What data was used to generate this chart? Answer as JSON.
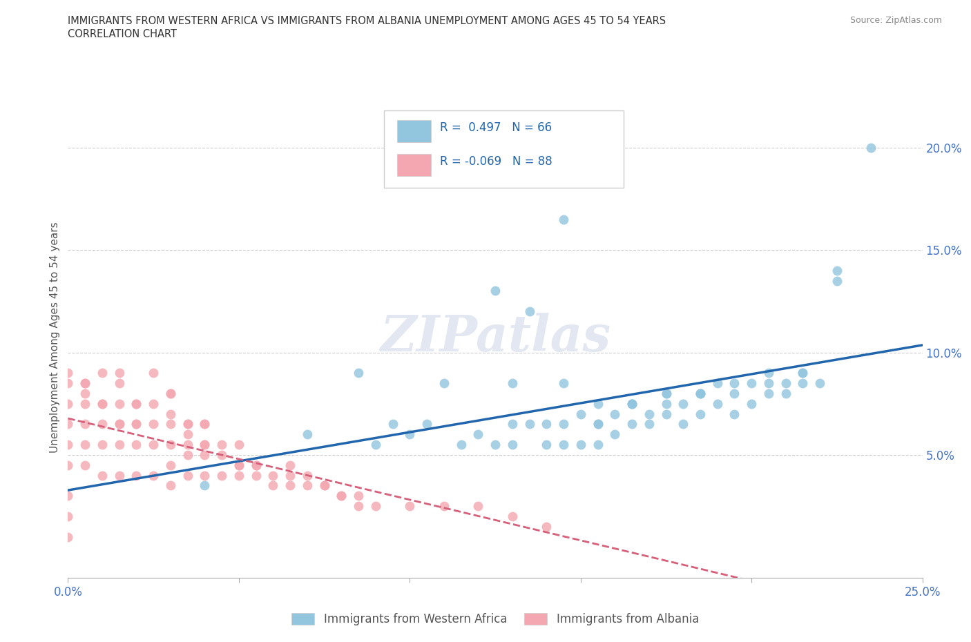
{
  "title_line1": "IMMIGRANTS FROM WESTERN AFRICA VS IMMIGRANTS FROM ALBANIA UNEMPLOYMENT AMONG AGES 45 TO 54 YEARS",
  "title_line2": "CORRELATION CHART",
  "source": "Source: ZipAtlas.com",
  "ylabel": "Unemployment Among Ages 45 to 54 years",
  "xlim": [
    0.0,
    0.25
  ],
  "ylim": [
    -0.01,
    0.225
  ],
  "yticks": [
    0.05,
    0.1,
    0.15,
    0.2
  ],
  "ytick_labels": [
    "5.0%",
    "10.0%",
    "15.0%",
    "20.0%"
  ],
  "R_blue": 0.497,
  "N_blue": 66,
  "R_pink": -0.069,
  "N_pink": 88,
  "blue_color": "#92c5de",
  "pink_color": "#f4a7b0",
  "trend_blue_color": "#2166ac",
  "trend_pink_color": "#d6607a",
  "legend_label_blue": "Immigrants from Western Africa",
  "legend_label_pink": "Immigrants from Albania",
  "watermark": "ZIPatlas",
  "blue_scatter_x": [
    0.04,
    0.07,
    0.085,
    0.09,
    0.095,
    0.1,
    0.105,
    0.11,
    0.115,
    0.12,
    0.125,
    0.13,
    0.13,
    0.135,
    0.14,
    0.14,
    0.145,
    0.145,
    0.15,
    0.15,
    0.155,
    0.155,
    0.16,
    0.16,
    0.165,
    0.165,
    0.17,
    0.17,
    0.175,
    0.175,
    0.18,
    0.18,
    0.185,
    0.185,
    0.19,
    0.19,
    0.195,
    0.195,
    0.2,
    0.2,
    0.205,
    0.205,
    0.21,
    0.21,
    0.215,
    0.215,
    0.22,
    0.225,
    0.13,
    0.145,
    0.155,
    0.165,
    0.175,
    0.185,
    0.125,
    0.135,
    0.145,
    0.155,
    0.165,
    0.175,
    0.185,
    0.195,
    0.205,
    0.215,
    0.225,
    0.235
  ],
  "blue_scatter_y": [
    0.035,
    0.06,
    0.09,
    0.055,
    0.065,
    0.06,
    0.065,
    0.085,
    0.055,
    0.06,
    0.13,
    0.055,
    0.085,
    0.12,
    0.055,
    0.065,
    0.065,
    0.085,
    0.055,
    0.07,
    0.055,
    0.065,
    0.06,
    0.07,
    0.065,
    0.075,
    0.065,
    0.07,
    0.07,
    0.08,
    0.065,
    0.075,
    0.07,
    0.08,
    0.075,
    0.085,
    0.07,
    0.08,
    0.075,
    0.085,
    0.08,
    0.09,
    0.08,
    0.085,
    0.085,
    0.09,
    0.085,
    0.14,
    0.065,
    0.055,
    0.065,
    0.075,
    0.075,
    0.08,
    0.055,
    0.065,
    0.165,
    0.075,
    0.075,
    0.08,
    0.08,
    0.085,
    0.085,
    0.09,
    0.135,
    0.2
  ],
  "pink_scatter_x": [
    0.0,
    0.0,
    0.0,
    0.0,
    0.0,
    0.0,
    0.005,
    0.005,
    0.005,
    0.005,
    0.005,
    0.01,
    0.01,
    0.01,
    0.01,
    0.01,
    0.015,
    0.015,
    0.015,
    0.015,
    0.015,
    0.02,
    0.02,
    0.02,
    0.02,
    0.025,
    0.025,
    0.025,
    0.025,
    0.03,
    0.03,
    0.03,
    0.03,
    0.03,
    0.035,
    0.035,
    0.035,
    0.035,
    0.04,
    0.04,
    0.04,
    0.04,
    0.045,
    0.045,
    0.05,
    0.05,
    0.05,
    0.055,
    0.055,
    0.06,
    0.065,
    0.065,
    0.07,
    0.075,
    0.08,
    0.085,
    0.09,
    0.1,
    0.11,
    0.12,
    0.13,
    0.14,
    0.0,
    0.0,
    0.0,
    0.005,
    0.005,
    0.01,
    0.015,
    0.015,
    0.02,
    0.02,
    0.025,
    0.03,
    0.03,
    0.035,
    0.035,
    0.04,
    0.04,
    0.045,
    0.05,
    0.055,
    0.06,
    0.065,
    0.07,
    0.075,
    0.08,
    0.085
  ],
  "pink_scatter_y": [
    0.045,
    0.055,
    0.065,
    0.075,
    0.085,
    0.09,
    0.045,
    0.055,
    0.065,
    0.075,
    0.085,
    0.04,
    0.055,
    0.065,
    0.075,
    0.09,
    0.04,
    0.055,
    0.065,
    0.075,
    0.09,
    0.04,
    0.055,
    0.065,
    0.075,
    0.04,
    0.055,
    0.065,
    0.075,
    0.035,
    0.045,
    0.055,
    0.065,
    0.08,
    0.04,
    0.05,
    0.055,
    0.065,
    0.04,
    0.05,
    0.055,
    0.065,
    0.04,
    0.05,
    0.04,
    0.045,
    0.055,
    0.04,
    0.045,
    0.035,
    0.035,
    0.045,
    0.035,
    0.035,
    0.03,
    0.03,
    0.025,
    0.025,
    0.025,
    0.025,
    0.02,
    0.015,
    0.01,
    0.02,
    0.03,
    0.08,
    0.085,
    0.075,
    0.065,
    0.085,
    0.065,
    0.075,
    0.09,
    0.07,
    0.08,
    0.06,
    0.065,
    0.055,
    0.065,
    0.055,
    0.045,
    0.045,
    0.04,
    0.04,
    0.04,
    0.035,
    0.03,
    0.025
  ]
}
